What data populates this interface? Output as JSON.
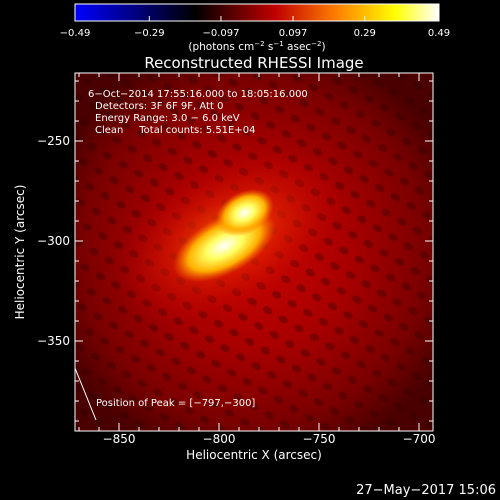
{
  "chart_data": {
    "type": "heatmap",
    "title": "Reconstructed RHESSI Image",
    "xlabel": "Heliocentric X (arcsec)",
    "ylabel": "Heliocentric Y (arcsec)",
    "xlim": [
      -872,
      -693
    ],
    "ylim": [
      -395,
      -216
    ],
    "xticks": [
      "−850",
      "−800",
      "−750",
      "−700"
    ],
    "xtick_values": [
      -850,
      -800,
      -750,
      -700
    ],
    "yticks": [
      "−250",
      "−300",
      "−350"
    ],
    "ytick_values": [
      -250,
      -300,
      -350
    ],
    "colorbar": {
      "min": -0.49,
      "max": 0.49,
      "ticks": [
        "−0.49",
        "−0.29",
        "−0.097",
        "0.097",
        "0.29",
        "0.49"
      ],
      "tick_values": [
        -0.49,
        -0.29,
        -0.097,
        0.097,
        0.29,
        0.49
      ],
      "label_main": "(photons cm",
      "label_exp1": "−2",
      "label_mid1": " s",
      "label_exp2": "−1",
      "label_mid2": " asec",
      "label_exp3": "−2",
      "label_end": ")",
      "colors": [
        "#0000ff",
        "#000000",
        "#c00000",
        "#ff8000",
        "#ffff00",
        "#ffffff"
      ]
    },
    "annotations": [
      "6−Oct−2014 17:55:16.000 to 18:05:16.000",
      "Detectors: 3F 6F 9F, Att 0",
      "Energy Range: 3.0 − 6.0 keV",
      "Clean     Total counts: 5.51E+04"
    ],
    "peak_label": "Position of Peak = [−797,−300]",
    "peak": [
      -797,
      -300
    ],
    "source_center": [
      -795,
      -298
    ],
    "source_extent_arcsec": [
      28,
      14
    ],
    "source_angle_deg": -28,
    "image_peak_value": 0.49
  },
  "timestamp": "27−May−2017 15:06"
}
